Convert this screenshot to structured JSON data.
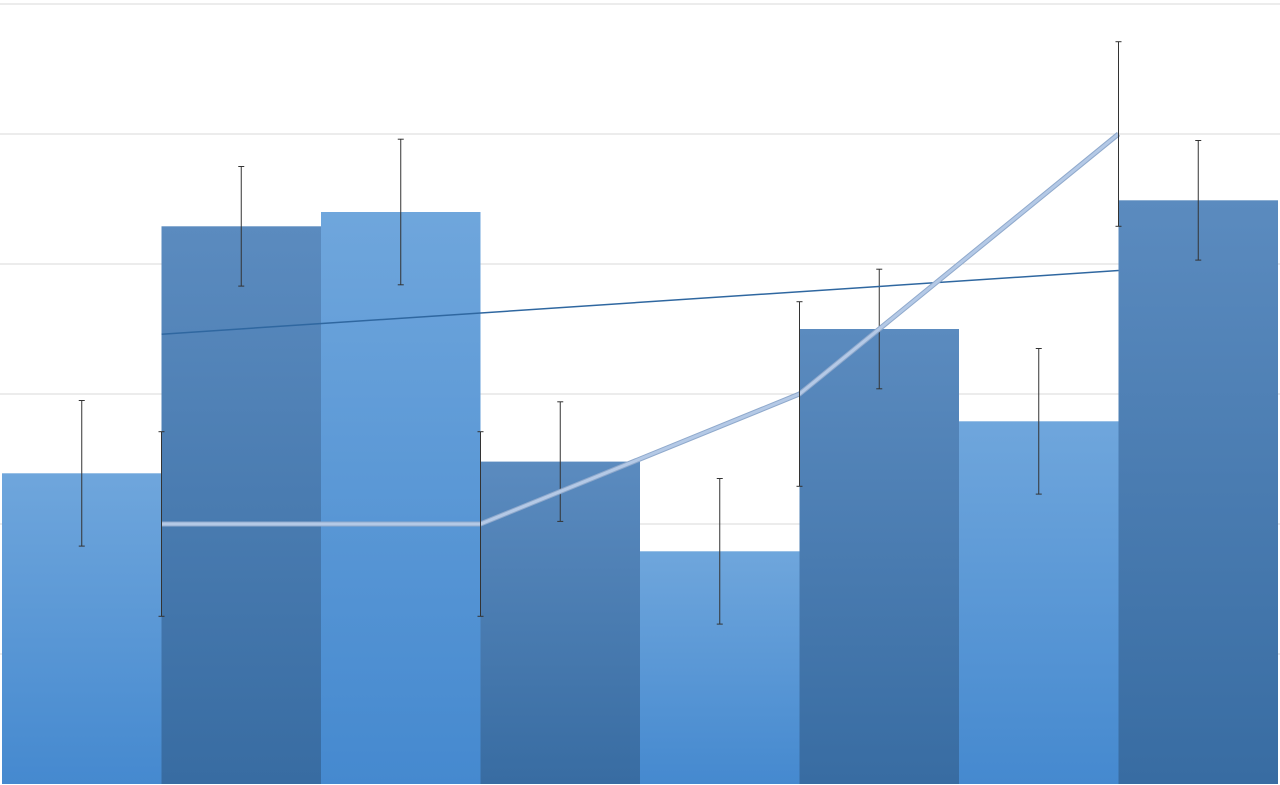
{
  "chart_data": {
    "type": "bar",
    "title": "",
    "xlabel": "",
    "ylabel": "",
    "ylim": [
      0,
      6
    ],
    "grid": true,
    "legend": "none",
    "bars": {
      "values": [
        2.39,
        4.29,
        4.4,
        2.48,
        1.79,
        3.5,
        2.79,
        4.49
      ],
      "errors": [
        0.56,
        0.46,
        0.56,
        0.46,
        0.56,
        0.46,
        0.56,
        0.46
      ],
      "styles": [
        "light",
        "dark",
        "light",
        "dark",
        "light",
        "dark",
        "light",
        "dark"
      ]
    },
    "line": {
      "x_positions": [
        1,
        3,
        5,
        7
      ],
      "values": [
        2,
        2,
        3,
        5
      ],
      "errors": [
        0.71,
        0.71,
        0.71,
        0.71
      ]
    },
    "trendline": {
      "x_range": [
        1,
        7
      ],
      "values": [
        3.46,
        3.95
      ]
    },
    "colors": {
      "light_top": "#6fa6dc",
      "light_bottom": "#4589cf",
      "dark_top": "#5b8bbf",
      "dark_bottom": "#386ca2",
      "line": "#b4c9e6",
      "trendline": "#2f67a0",
      "grid": "#d9d9d9",
      "error_bar": "#333333"
    }
  }
}
